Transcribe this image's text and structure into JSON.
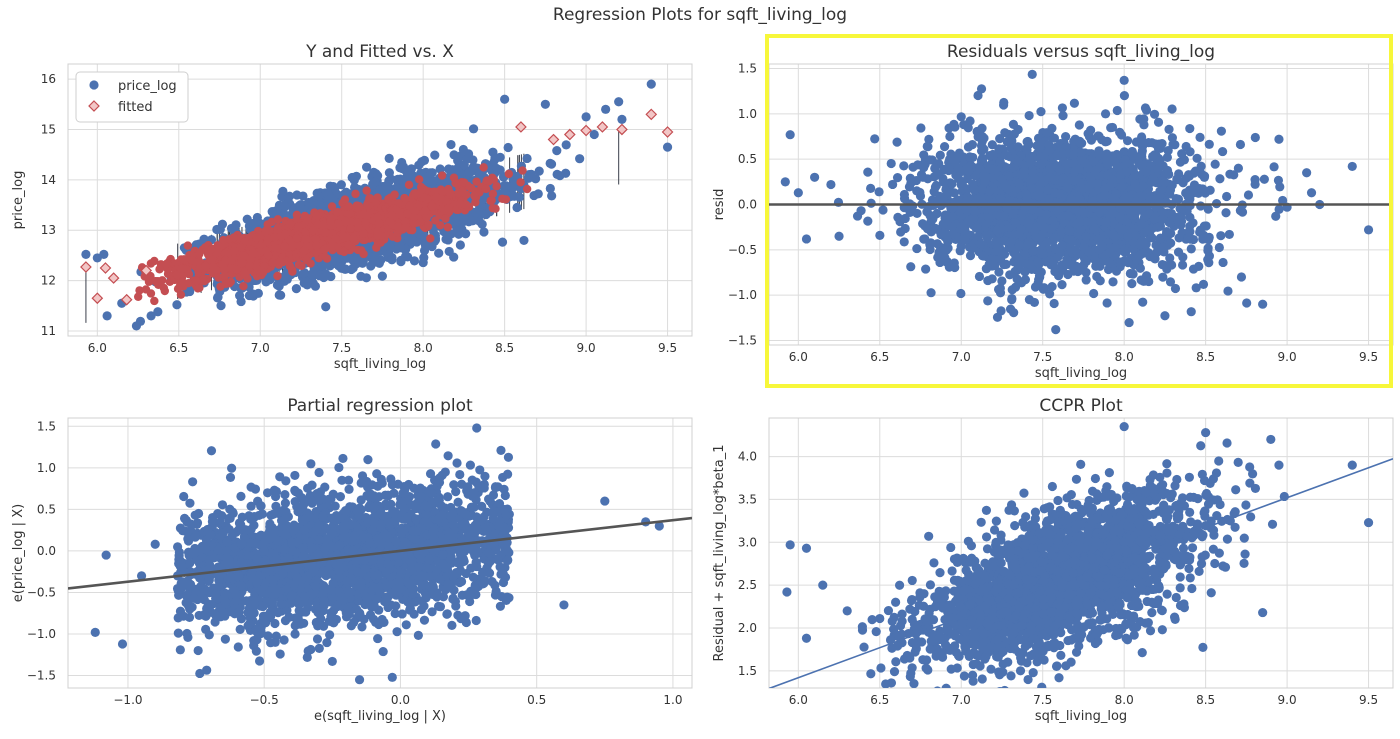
{
  "suptitle": "Regression Plots for sqft_living_log",
  "colors": {
    "points": "#4c72b0",
    "fitted": "#c44e52",
    "fit_line_dark": "#555555",
    "fit_line_blue": "#4c72b0",
    "highlight": "#f7f73a",
    "grid": "#dcdcdc"
  },
  "chart_data": [
    {
      "id": "fit",
      "type": "scatter",
      "title": "Y and Fitted vs. X",
      "xlabel": "sqft_living_log",
      "ylabel": "price_log",
      "xlim": [
        5.82,
        9.65
      ],
      "ylim": [
        10.9,
        16.3
      ],
      "xticks": [
        "6.0",
        "6.5",
        "7.0",
        "7.5",
        "8.0",
        "8.5",
        "9.0",
        "9.5"
      ],
      "yticks": [
        "11",
        "12",
        "13",
        "14",
        "15",
        "16"
      ],
      "grid": true,
      "legend_position": "upper left",
      "series": [
        {
          "name": "price_log",
          "marker": "circle",
          "color": "#4c72b0",
          "cloud": {
            "x_range": [
              5.92,
              9.55
            ],
            "intercept": 6.73,
            "slope": 0.84,
            "residual_sd": 0.38
          },
          "points": [
            [
              5.93,
              12.52
            ],
            [
              6.0,
              12.45
            ],
            [
              6.04,
              12.52
            ],
            [
              6.06,
              11.3
            ],
            [
              6.15,
              11.55
            ],
            [
              6.24,
              11.1
            ],
            [
              6.33,
              11.3
            ],
            [
              9.0,
              15.25
            ],
            [
              9.05,
              14.9
            ],
            [
              9.12,
              15.4
            ],
            [
              9.2,
              15.55
            ],
            [
              9.22,
              15.2
            ],
            [
              9.4,
              15.9
            ],
            [
              9.5,
              14.65
            ],
            [
              8.5,
              15.6
            ],
            [
              8.75,
              15.5
            ]
          ]
        },
        {
          "name": "fitted",
          "marker": "diamond-open",
          "color": "#c44e52",
          "line": {
            "intercept": 6.73,
            "slope": 0.84
          }
        }
      ]
    },
    {
      "id": "resid",
      "type": "scatter",
      "title": "Residuals versus sqft_living_log",
      "xlabel": "sqft_living_log",
      "ylabel": "resid",
      "xlim": [
        5.82,
        9.65
      ],
      "ylim": [
        -1.55,
        1.55
      ],
      "xticks": [
        "6.0",
        "6.5",
        "7.0",
        "7.5",
        "8.0",
        "8.5",
        "9.0",
        "9.5"
      ],
      "yticks": [
        "-1.5",
        "-1.0",
        "-0.5",
        "0.0",
        "0.5",
        "1.0",
        "1.5"
      ],
      "grid": true,
      "highlighted": true,
      "series": [
        {
          "name": "resid",
          "marker": "circle",
          "color": "#4c72b0",
          "cloud": {
            "x_range": [
              5.92,
              9.55
            ],
            "intercept": 0.0,
            "slope": 0.0,
            "residual_sd": 0.38
          },
          "points": [
            [
              5.92,
              0.25
            ],
            [
              5.95,
              0.77
            ],
            [
              6.0,
              0.13
            ],
            [
              6.05,
              -0.38
            ],
            [
              6.1,
              0.3
            ],
            [
              6.2,
              0.22
            ],
            [
              6.25,
              -0.35
            ],
            [
              8.95,
              0.72
            ],
            [
              9.12,
              0.35
            ],
            [
              9.15,
              0.13
            ],
            [
              9.4,
              0.42
            ],
            [
              9.5,
              -0.28
            ],
            [
              9.2,
              0.0
            ],
            [
              7.58,
              -1.38
            ],
            [
              8.0,
              1.37
            ],
            [
              8.85,
              -1.1
            ]
          ]
        },
        {
          "name": "zero line",
          "type": "hline",
          "y": 0.0,
          "color": "#555555"
        }
      ]
    },
    {
      "id": "partreg",
      "type": "scatter",
      "title": "Partial regression plot",
      "xlabel": "e(sqft_living_log | X)",
      "ylabel": "e(price_log | X)",
      "xlim": [
        -1.22,
        1.07
      ],
      "ylim": [
        -1.65,
        1.6
      ],
      "xticks": [
        "-1.0",
        "-0.5",
        "0.0",
        "0.5",
        "1.0"
      ],
      "yticks": [
        "-1.5",
        "-1.0",
        "-0.5",
        "0.0",
        "0.5",
        "1.0",
        "1.5"
      ],
      "grid": true,
      "series": [
        {
          "name": "partial",
          "marker": "circle",
          "color": "#4c72b0",
          "cloud": {
            "x_range": [
              -1.12,
              0.95
            ],
            "intercept": 0.0,
            "slope": 0.37,
            "residual_sd": 0.38
          },
          "points": [
            [
              -1.12,
              -0.98
            ],
            [
              -1.08,
              -0.05
            ],
            [
              -1.02,
              -1.12
            ],
            [
              -0.95,
              -0.3
            ],
            [
              -0.9,
              0.08
            ],
            [
              0.28,
              1.48
            ],
            [
              -0.25,
              -1.33
            ],
            [
              -0.15,
              -1.55
            ],
            [
              0.9,
              0.35
            ],
            [
              0.95,
              0.3
            ],
            [
              0.6,
              -0.65
            ],
            [
              0.75,
              0.6
            ]
          ]
        },
        {
          "name": "fit",
          "type": "line",
          "intercept": 0.0,
          "slope": 0.37,
          "color": "#555555"
        }
      ]
    },
    {
      "id": "ccpr",
      "type": "scatter",
      "title": "CCPR Plot",
      "xlabel": "sqft_living_log",
      "ylabel": "Residual + sqft_living_log*beta_1",
      "xlim": [
        5.82,
        9.65
      ],
      "ylim": [
        1.3,
        4.45
      ],
      "xticks": [
        "6.0",
        "6.5",
        "7.0",
        "7.5",
        "8.0",
        "8.5",
        "9.0",
        "9.5"
      ],
      "yticks": [
        "1.5",
        "2.0",
        "2.5",
        "3.0",
        "3.5",
        "4.0"
      ],
      "grid": true,
      "series": [
        {
          "name": "component",
          "marker": "circle",
          "color": "#4c72b0",
          "cloud": {
            "x_range": [
              5.92,
              9.55
            ],
            "intercept": -2.78,
            "slope": 0.7,
            "residual_sd": 0.38
          },
          "points": [
            [
              5.93,
              2.42
            ],
            [
              5.95,
              2.97
            ],
            [
              6.05,
              1.88
            ],
            [
              6.05,
              2.93
            ],
            [
              6.15,
              2.5
            ],
            [
              6.3,
              2.2
            ],
            [
              8.0,
              4.35
            ],
            [
              8.5,
              4.28
            ],
            [
              8.9,
              4.2
            ],
            [
              8.95,
              3.9
            ],
            [
              9.4,
              3.9
            ],
            [
              9.5,
              3.23
            ],
            [
              8.85,
              2.18
            ],
            [
              7.6,
              1.42
            ]
          ]
        },
        {
          "name": "fit",
          "type": "line",
          "intercept": -2.78,
          "slope": 0.7,
          "color": "#4c72b0"
        }
      ]
    }
  ]
}
